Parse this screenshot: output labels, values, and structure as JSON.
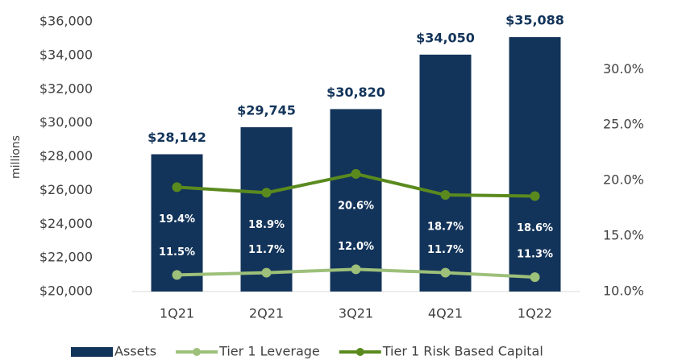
{
  "chart_data": {
    "type": "bar",
    "y_axis_label": "millions",
    "categories": [
      "1Q21",
      "2Q21",
      "3Q21",
      "4Q21",
      "1Q22"
    ],
    "series": [
      {
        "name": "Assets",
        "type": "bar",
        "color": "#13345a",
        "values": [
          28142,
          29745,
          30820,
          34050,
          35088
        ],
        "value_labels": [
          "$28,142",
          "$29,745",
          "$30,820",
          "$34,050",
          "$35,088"
        ]
      },
      {
        "name": "Tier 1 Leverage",
        "type": "line",
        "axis": "y2",
        "color": "#9dc07a",
        "values": [
          11.5,
          11.7,
          12.0,
          11.7,
          11.3
        ],
        "value_labels": [
          "11.5%",
          "11.7%",
          "12.0%",
          "11.7%",
          "11.3%"
        ]
      },
      {
        "name": "Tier 1 Risk Based Capital",
        "type": "line",
        "axis": "y2",
        "color": "#5a8a1e",
        "values": [
          19.4,
          18.9,
          20.6,
          18.7,
          18.6
        ],
        "value_labels": [
          "19.4%",
          "18.9%",
          "20.6%",
          "18.7%",
          "18.6%"
        ]
      }
    ],
    "ylim": [
      20000,
      36000
    ],
    "yticks": [
      {
        "value": 20000,
        "label": "$20,000"
      },
      {
        "value": 22000,
        "label": "$22,000"
      },
      {
        "value": 24000,
        "label": "$24,000"
      },
      {
        "value": 26000,
        "label": "$26,000"
      },
      {
        "value": 28000,
        "label": "$28,000"
      },
      {
        "value": 30000,
        "label": "$30,000"
      },
      {
        "value": 32000,
        "label": "$32,000"
      },
      {
        "value": 34000,
        "label": "$34,000"
      },
      {
        "value": 36000,
        "label": "$36,000"
      }
    ],
    "y2lim": [
      10,
      34.3
    ],
    "y2ticks": [
      {
        "value": 10,
        "label": "10.0%"
      },
      {
        "value": 15,
        "label": "15.0%"
      },
      {
        "value": 20,
        "label": "20.0%"
      },
      {
        "value": 25,
        "label": "25.0%"
      },
      {
        "value": 30,
        "label": "30.0%"
      }
    ],
    "legend": "bottom"
  }
}
